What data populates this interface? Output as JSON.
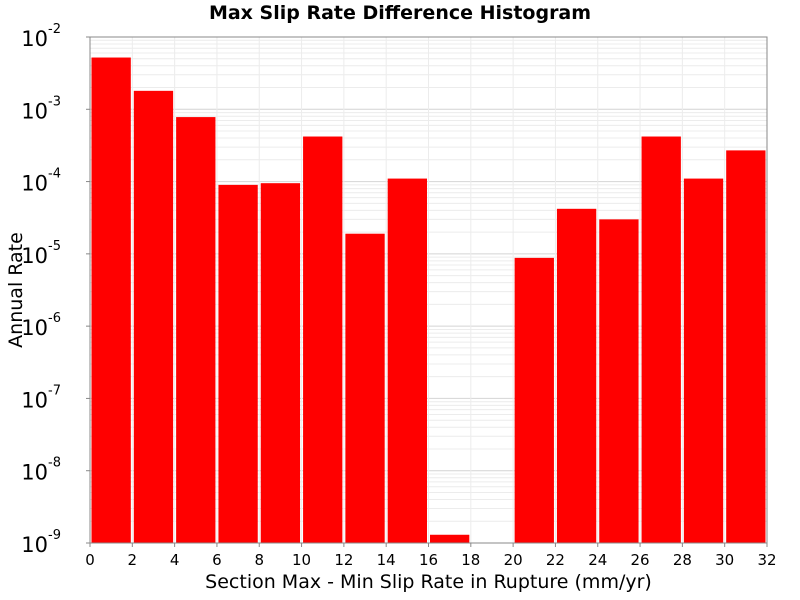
{
  "chart_data": {
    "type": "bar",
    "title": "Max Slip Rate Difference Histogram",
    "xlabel": "Section Max - Min Slip Rate in Rupture (mm/yr)",
    "ylabel": "Annual Rate",
    "xlim": [
      0,
      32
    ],
    "ylim": [
      1e-09,
      0.01
    ],
    "yscale": "log",
    "grid": true,
    "bar_color": "#ff0000",
    "bin_width": 2,
    "bins": [
      {
        "start": 0,
        "value": 0.0052
      },
      {
        "start": 2,
        "value": 0.0018
      },
      {
        "start": 4,
        "value": 0.00078
      },
      {
        "start": 6,
        "value": 9e-05
      },
      {
        "start": 8,
        "value": 9.5e-05
      },
      {
        "start": 10,
        "value": 0.00042
      },
      {
        "start": 12,
        "value": 1.9e-05
      },
      {
        "start": 14,
        "value": 0.00011
      },
      {
        "start": 16,
        "value": 1.3e-09
      },
      {
        "start": 18,
        "value": null
      },
      {
        "start": 20,
        "value": 8.8e-06
      },
      {
        "start": 22,
        "value": 4.2e-05
      },
      {
        "start": 24,
        "value": 3e-05
      },
      {
        "start": 26,
        "value": 0.00042
      },
      {
        "start": 28,
        "value": 0.00011
      },
      {
        "start": 30,
        "value": 0.00027
      }
    ],
    "x_ticks": [
      "0",
      "2",
      "4",
      "6",
      "8",
      "10",
      "12",
      "14",
      "16",
      "18",
      "20",
      "22",
      "24",
      "26",
      "28",
      "30",
      "32"
    ],
    "y_ticks": [
      {
        "base": "10",
        "exp": "-2"
      },
      {
        "base": "10",
        "exp": "-3"
      },
      {
        "base": "10",
        "exp": "-4"
      },
      {
        "base": "10",
        "exp": "-5"
      },
      {
        "base": "10",
        "exp": "-6"
      },
      {
        "base": "10",
        "exp": "-7"
      },
      {
        "base": "10",
        "exp": "-8"
      },
      {
        "base": "10",
        "exp": "-9"
      }
    ]
  }
}
